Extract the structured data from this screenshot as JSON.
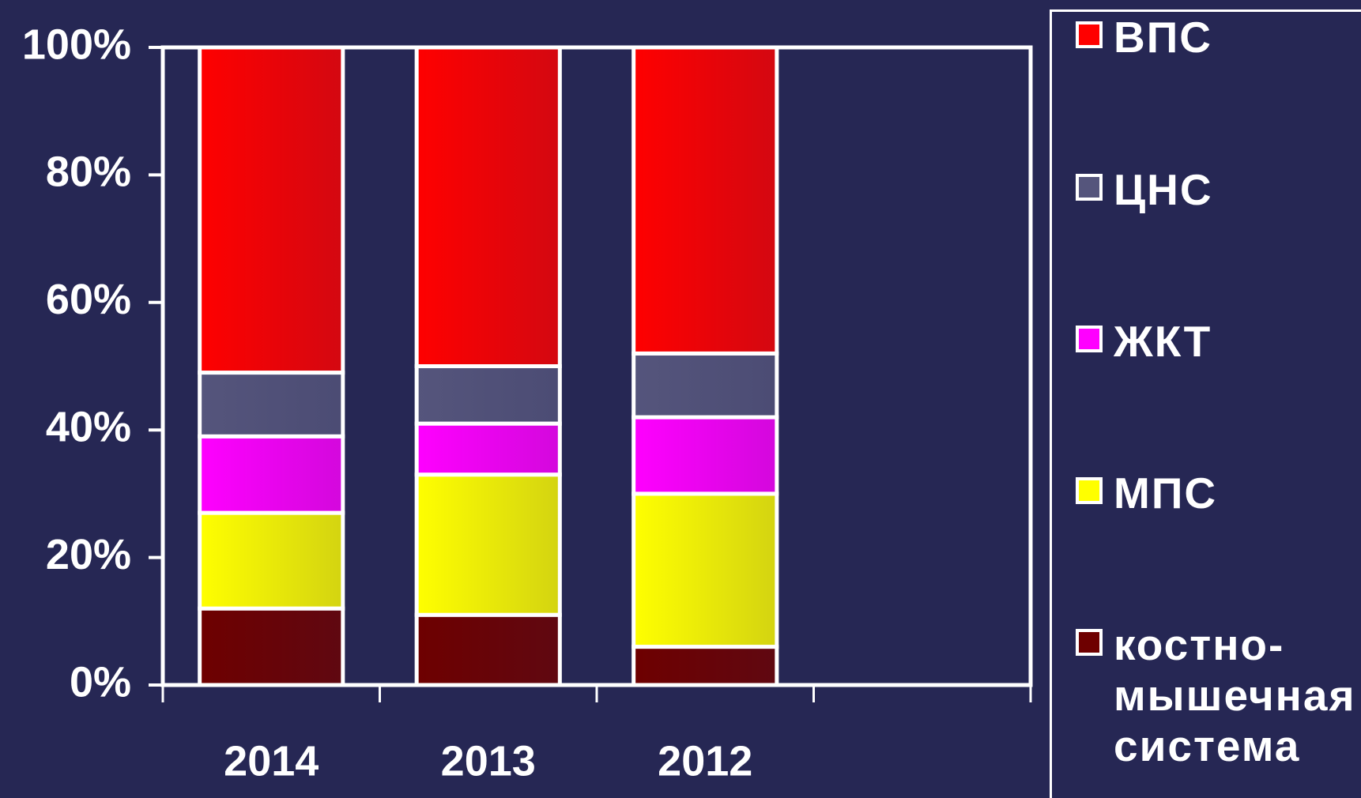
{
  "chart_data": {
    "type": "stacked_bar",
    "categories": [
      "2014",
      "2013",
      "2012",
      null
    ],
    "series": [
      {
        "name": "костно-мышечная система",
        "color": "#6e0000",
        "values": [
          12,
          11,
          6,
          null
        ]
      },
      {
        "name": "МПС",
        "color": "#ffff00",
        "values": [
          15,
          22,
          24,
          null
        ]
      },
      {
        "name": "ЖКТ",
        "color": "#ff00ff",
        "values": [
          12,
          8,
          12,
          null
        ]
      },
      {
        "name": "ЦНС",
        "color": "#55557c",
        "values": [
          10,
          9,
          10,
          null
        ]
      },
      {
        "name": "ВПС",
        "color": "#ff0000",
        "values": [
          51,
          50,
          48,
          null
        ]
      }
    ],
    "legend_order": "reverse",
    "ylim": [
      0,
      100
    ],
    "yticks": [
      {
        "value": 0,
        "label": "0%"
      },
      {
        "value": 20,
        "label": "20%"
      },
      {
        "value": 40,
        "label": "40%"
      },
      {
        "value": 60,
        "label": "60%"
      },
      {
        "value": 80,
        "label": "80%"
      },
      {
        "value": 100,
        "label": "100%"
      }
    ]
  }
}
